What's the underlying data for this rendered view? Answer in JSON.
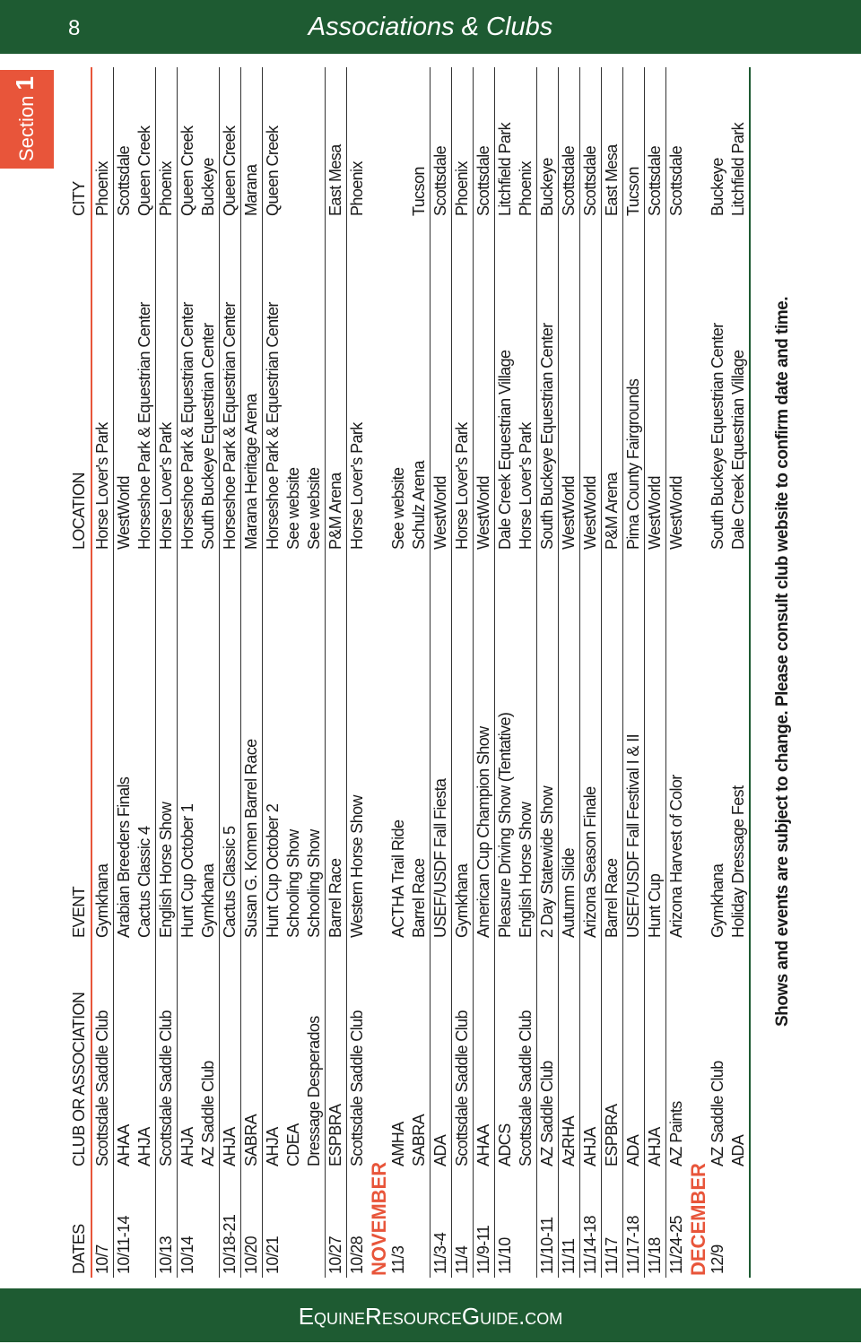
{
  "header": {
    "page_number": "8",
    "title": "Associations & Clubs",
    "section_label": "Section",
    "section_number": "1"
  },
  "table": {
    "columns": [
      "DATES",
      "CLUB OR ASSOCIATION",
      "EVENT",
      "LOCATION",
      "CITY"
    ],
    "groups": [
      {
        "month": null,
        "rows": [
          [
            "10/7",
            "Scottsdale Saddle Club",
            "Gymkhana",
            "Horse Lover's Park",
            "Phoenix"
          ],
          [
            "10/11-14",
            "AHAA",
            "Arabian Breeders Finals",
            "WestWorld",
            "Scottsdale"
          ],
          [
            null,
            "AHJA",
            "Cactus Classic 4",
            "Horseshoe Park & Equestrian Center",
            "Queen Creek"
          ],
          [
            "10/13",
            "Scottsdale Saddle Club",
            "English Horse Show",
            "Horse Lover's Park",
            "Phoenix"
          ],
          [
            "10/14",
            "AHJA",
            "Hunt Cup October 1",
            "Horseshoe Park & Equestrian Center",
            "Queen Creek"
          ],
          [
            null,
            "AZ Saddle Club",
            "Gymkhana",
            "South Buckeye Equestrian Center",
            "Buckeye"
          ],
          [
            "10/18-21",
            "AHJA",
            "Cactus Classic 5",
            "Horseshoe Park & Equestrian Center",
            "Queen Creek"
          ],
          [
            "10/20",
            "SABRA",
            "Susan G. Komen Barrel Race",
            "Marana Heritage Arena",
            "Marana"
          ],
          [
            "10/21",
            "AHJA",
            "Hunt Cup October 2",
            "Horseshoe Park & Equestrian Center",
            "Queen Creek"
          ],
          [
            null,
            "CDEA",
            "Schooling Show",
            "See website",
            null
          ],
          [
            null,
            "Dressage Desperados",
            "Schooling Show",
            "See website",
            null
          ],
          [
            "10/27",
            "ESPBRA",
            "Barrel Race",
            "P&M Arena",
            "East Mesa"
          ],
          [
            "10/28",
            "Scottsdale Saddle Club",
            "Western Horse Show",
            "Horse Lover's Park",
            "Phoenix"
          ]
        ]
      },
      {
        "month": "NOVEMBER",
        "rows": [
          [
            "11/3",
            "AMHA",
            "ACTHA Trail Ride",
            "See website",
            null
          ],
          [
            null,
            "SABRA",
            "Barrel Race",
            "Schulz Arena",
            "Tucson"
          ],
          [
            "11/3-4",
            "ADA",
            "USEF/USDF Fall Fiesta",
            "WestWorld",
            "Scottsdale"
          ],
          [
            "11/4",
            "Scottsdale Saddle Club",
            "Gymkhana",
            "Horse Lover's Park",
            "Phoenix"
          ],
          [
            "11/9-11",
            "AHAA",
            "American Cup Champion Show",
            "WestWorld",
            "Scottsdale"
          ],
          [
            "11/10",
            "ADCS",
            "Pleasure Driving Show (Tentative)",
            "Dale Creek Equestrian Village",
            "Litchfield Park"
          ],
          [
            null,
            "Scottsdale Saddle Club",
            "English Horse Show",
            "Horse Lover's Park",
            "Phoenix"
          ],
          [
            "11/10-11",
            "AZ Saddle Club",
            "2 Day Statewide Show",
            "South Buckeye Equestrian Center",
            "Buckeye"
          ],
          [
            "11/11",
            "AzRHA",
            "Autumn Slide",
            "WestWorld",
            "Scottsdale"
          ],
          [
            "11/14-18",
            "AHJA",
            "Arizona Season Finale",
            "WestWorld",
            "Scottsdale"
          ],
          [
            "11/17",
            "ESPBRA",
            "Barrel Race",
            "P&M Arena",
            "East Mesa"
          ],
          [
            "11/17-18",
            "ADA",
            "USEF/USDF Fall Festival I & II",
            "Pima County Fairgrounds",
            "Tucson"
          ],
          [
            "11/18",
            "AHJA",
            "Hunt Cup",
            "WestWorld",
            "Scottsdale"
          ],
          [
            "11/24-25",
            "AZ Paints",
            "Arizona Harvest of Color",
            "WestWorld",
            "Scottsdale"
          ]
        ]
      },
      {
        "month": "DECEMBER",
        "rows": [
          [
            "12/9",
            "AZ Saddle Club",
            "Gymkhana",
            "South Buckeye Equestrian Center",
            "Buckeye"
          ],
          [
            null,
            "ADA",
            "Holiday Dressage Fest",
            "Dale Creek Equestrian Village",
            "Litchfield Park"
          ]
        ]
      }
    ]
  },
  "footnote": "Shows and events are subject to change. Please consult club website to confirm date and time.",
  "footer": {
    "site": "EquineResourceGuide.com"
  }
}
